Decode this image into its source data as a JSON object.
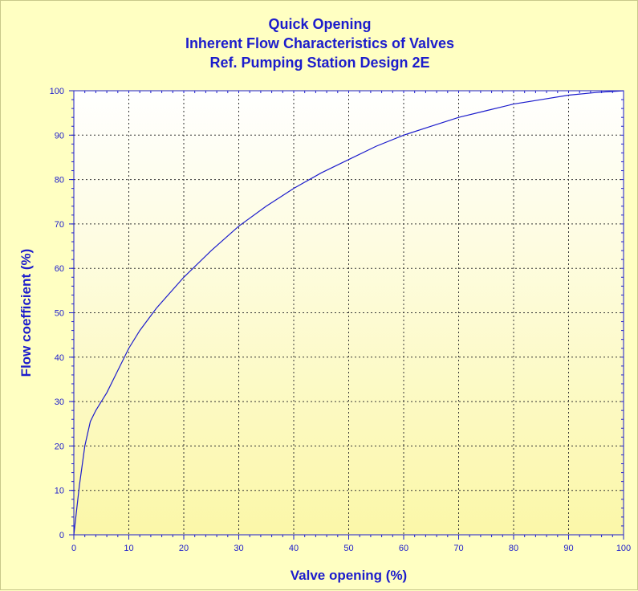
{
  "chart_data": {
    "type": "line",
    "title": [
      "Quick Opening",
      "Inherent Flow Characteristics of Valves",
      "Ref. Pumping Station Design 2E"
    ],
    "xlabel": "Valve opening (%)",
    "ylabel": "Flow coefficient (%)",
    "xlim": [
      0,
      100
    ],
    "ylim": [
      0,
      100
    ],
    "x_major_ticks": [
      0,
      10,
      20,
      30,
      40,
      50,
      60,
      70,
      80,
      90,
      100
    ],
    "y_major_ticks": [
      0,
      10,
      20,
      30,
      40,
      50,
      60,
      70,
      80,
      90,
      100
    ],
    "grid": true,
    "series": [
      {
        "color": "#1c1ccc",
        "x": [
          0,
          1,
          2,
          3,
          4,
          5,
          6,
          8,
          10,
          12,
          15,
          20,
          25,
          30,
          35,
          40,
          45,
          50,
          55,
          60,
          65,
          70,
          75,
          80,
          85,
          90,
          95,
          100
        ],
        "y": [
          0,
          11,
          20,
          25.5,
          28,
          30,
          32,
          37,
          42,
          46,
          51,
          58,
          64,
          69.5,
          74,
          78,
          81.5,
          84.5,
          87.5,
          90,
          92,
          94,
          95.5,
          97,
          98,
          99,
          99.6,
          100
        ]
      }
    ]
  },
  "colors": {
    "background": "#ffffc2",
    "plot_top": "#ffffff",
    "plot_bottom": "#fbf7a8",
    "accent": "#1c1ccc"
  }
}
